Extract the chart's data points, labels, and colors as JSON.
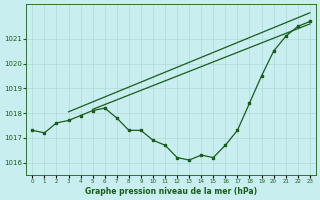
{
  "title": "Graphe pression niveau de la mer (hPa)",
  "background_color": "#c8eef0",
  "grid_color": "#b0d8da",
  "line_color": "#1a5c1a",
  "hours": [
    0,
    1,
    2,
    3,
    4,
    5,
    6,
    7,
    8,
    9,
    10,
    11,
    12,
    13,
    14,
    15,
    16,
    17,
    18,
    19,
    20,
    21,
    22,
    23
  ],
  "main_line": [
    1017.3,
    1017.2,
    1017.6,
    1017.7,
    1017.9,
    1018.1,
    1018.2,
    1017.8,
    1017.3,
    1017.3,
    1016.9,
    1016.7,
    1016.2,
    1016.1,
    1016.3,
    1016.2,
    1016.7,
    1017.3,
    1018.4,
    1019.5,
    1020.5,
    1021.1,
    1021.5,
    1021.7
  ],
  "trend1_x": [
    3,
    23
  ],
  "trend1_y": [
    1018.05,
    1022.05
  ],
  "trend2_x": [
    5,
    23
  ],
  "trend2_y": [
    1018.15,
    1021.6
  ],
  "ylim": [
    1015.5,
    1022.4
  ],
  "yticks": [
    1016,
    1017,
    1018,
    1019,
    1020,
    1021
  ],
  "xlim": [
    -0.5,
    23.5
  ],
  "xticks": [
    0,
    1,
    2,
    3,
    4,
    5,
    6,
    7,
    8,
    9,
    10,
    11,
    12,
    13,
    14,
    15,
    16,
    17,
    18,
    19,
    20,
    21,
    22,
    23
  ],
  "xtick_labels": [
    "0",
    "1",
    "2",
    "3",
    "4",
    "5",
    "6",
    "7",
    "8",
    "9",
    "10",
    "11",
    "12",
    "13",
    "14",
    "15",
    "16",
    "17",
    "18",
    "19",
    "20",
    "21",
    "22",
    "23"
  ]
}
